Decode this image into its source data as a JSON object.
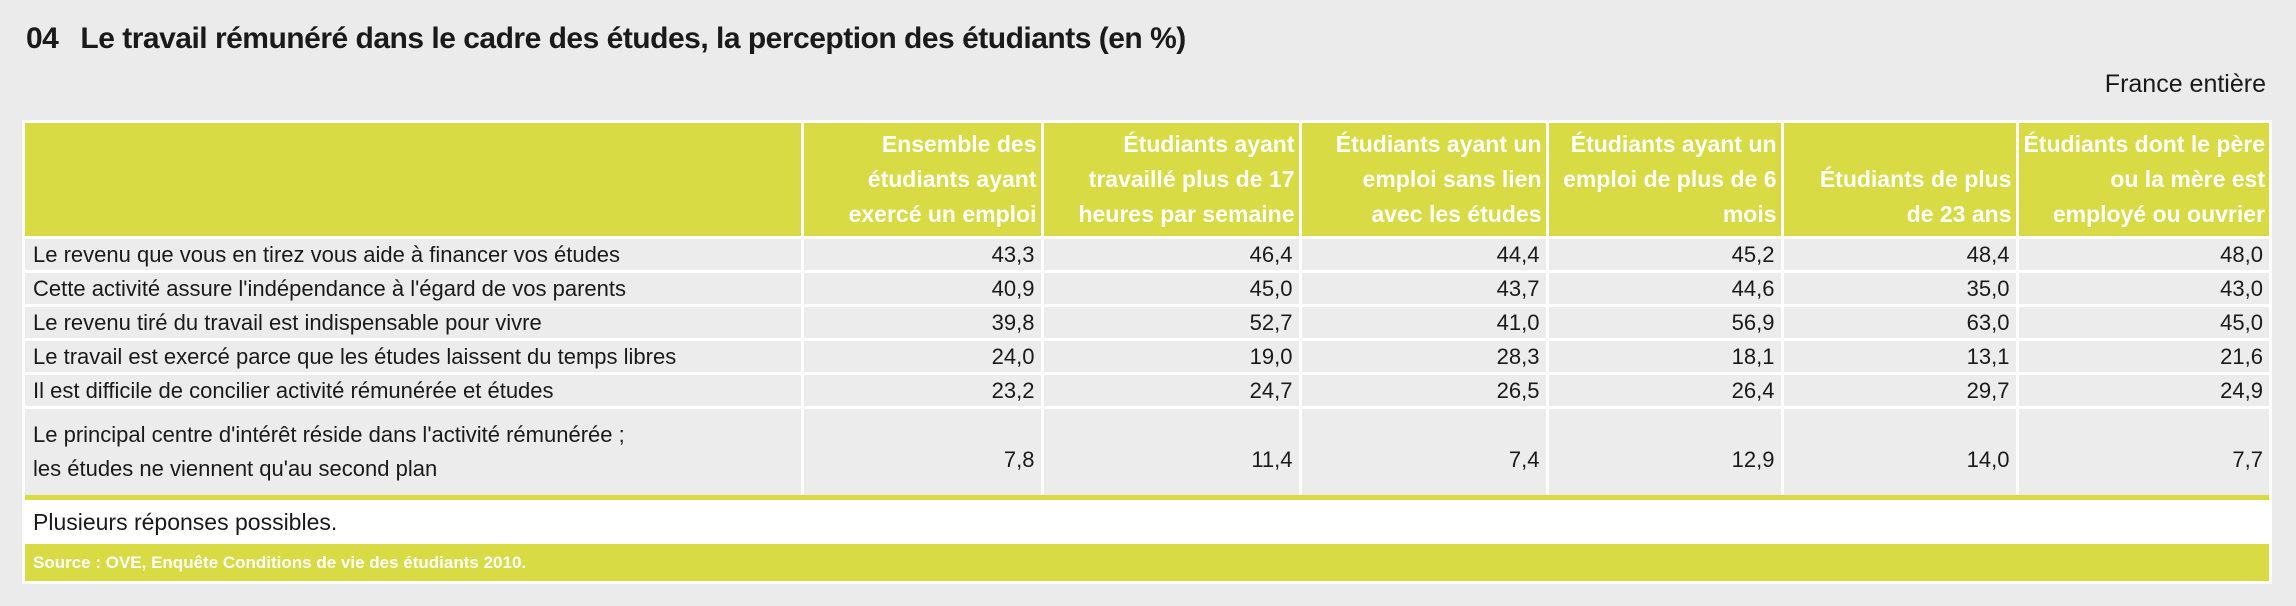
{
  "title": {
    "number": "04",
    "text": "Le travail rémunéré dans le cadre des études, la perception des étudiants (en %)"
  },
  "scope": "France entière",
  "table": {
    "columns": [
      "Ensemble des étudiants ayant exercé un emploi",
      "Étudiants ayant travaillé plus de 17 heures par semaine",
      "Étudiants ayant un emploi sans lien avec les études",
      "Étudiants ayant un emploi de plus de 6 mois",
      "Étudiants de plus de 23 ans",
      "Étudiants dont le père ou la mère est employé ou ouvrier"
    ],
    "rows": [
      {
        "label": "Le revenu que vous en tirez vous aide à financer vos études",
        "values": [
          "43,3",
          "46,4",
          "44,4",
          "45,2",
          "48,4",
          "48,0"
        ]
      },
      {
        "label": "Cette activité assure l'indépendance à l'égard de vos parents",
        "values": [
          "40,9",
          "45,0",
          "43,7",
          "44,6",
          "35,0",
          "43,0"
        ]
      },
      {
        "label": "Le revenu tiré du travail est indispensable pour vivre",
        "values": [
          "39,8",
          "52,7",
          "41,0",
          "56,9",
          "63,0",
          "45,0"
        ]
      },
      {
        "label": "Le travail est exercé parce que les études laissent du temps libres",
        "values": [
          "24,0",
          "19,0",
          "28,3",
          "18,1",
          "13,1",
          "21,6"
        ]
      },
      {
        "label": "Il est difficile de concilier activité rémunérée et études",
        "values": [
          "23,2",
          "24,7",
          "26,5",
          "26,4",
          "29,7",
          "24,9"
        ]
      },
      {
        "label": "Le principal centre d'intérêt réside dans l'activité rémunérée ;",
        "label_line2": "les études ne viennent qu'au second plan",
        "values": [
          "7,8",
          "11,4",
          "7,4",
          "12,9",
          "14,0",
          "7,7"
        ]
      }
    ]
  },
  "note": "Plusieurs réponses possibles.",
  "source": "Source : OVE, Enquête Conditions de vie des étudiants 2010."
}
